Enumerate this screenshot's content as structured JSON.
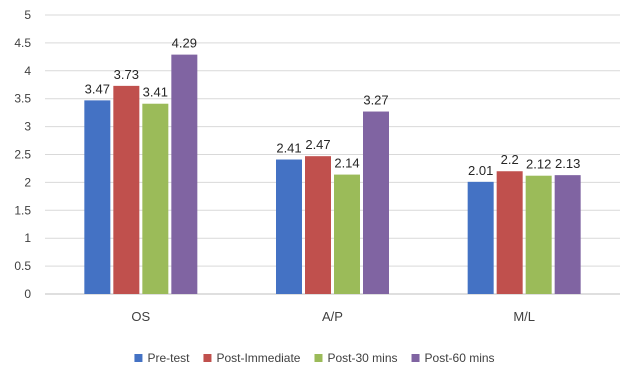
{
  "chart_data": {
    "type": "bar",
    "title": "",
    "xlabel": "",
    "ylabel": "",
    "categories": [
      "OS",
      "A/P",
      "M/L"
    ],
    "ylim": [
      0,
      5
    ],
    "yticks": [
      "0",
      "0.5",
      "1",
      "1.5",
      "2",
      "2.5",
      "3",
      "3.5",
      "4",
      "4.5",
      "5"
    ],
    "grid": true,
    "legend_position": "bottom",
    "series": [
      {
        "name": "Pre-test",
        "color": "#4472C4",
        "values": [
          3.47,
          2.41,
          2.01
        ],
        "labels": [
          "3.47",
          "2.41",
          "2.01"
        ]
      },
      {
        "name": "Post-Immediate",
        "color": "#C0504D",
        "values": [
          3.73,
          2.47,
          2.2
        ],
        "labels": [
          "3.73",
          "2.47",
          "2.2"
        ]
      },
      {
        "name": "Post-30 mins",
        "color": "#9BBB59",
        "values": [
          3.41,
          2.14,
          2.12
        ],
        "labels": [
          "3.41",
          "2.14",
          "2.12"
        ]
      },
      {
        "name": "Post-60 mins",
        "color": "#8064A2",
        "values": [
          4.29,
          3.27,
          2.13
        ],
        "labels": [
          "4.29",
          "3.27",
          "2.13"
        ]
      }
    ]
  }
}
